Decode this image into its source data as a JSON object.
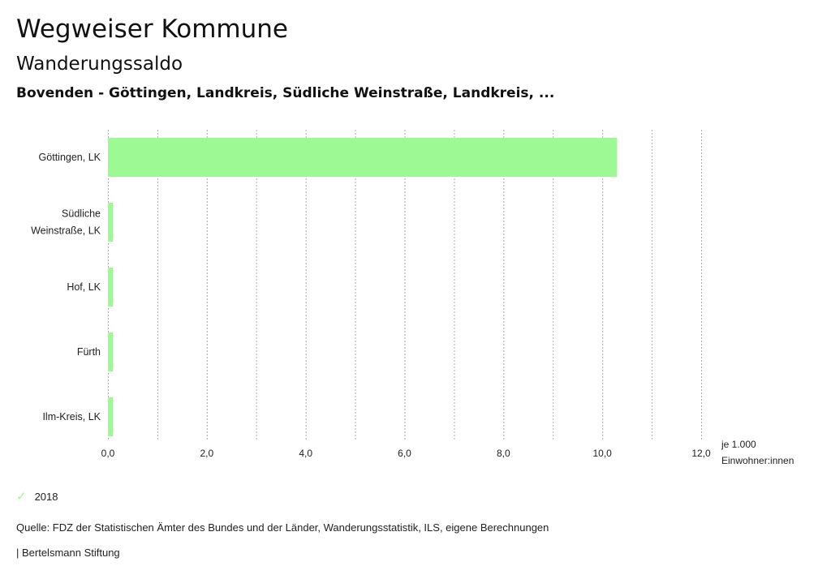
{
  "header": {
    "title": "Wegweiser Kommune",
    "subtitle": "Wanderungssaldo",
    "selection": "Bovenden - Göttingen, Landkreis, Südliche Weinstraße, Landkreis, ..."
  },
  "chart_data": {
    "type": "bar",
    "orientation": "horizontal",
    "categories": [
      [
        "Göttingen, LK"
      ],
      [
        "Südliche",
        "Weinstraße, LK"
      ],
      [
        "Hof, LK"
      ],
      [
        "Fürth"
      ],
      [
        "Ilm-Kreis, LK"
      ]
    ],
    "series": [
      {
        "name": "2018",
        "values": [
          10.3,
          0.1,
          0.1,
          0.1,
          0.1
        ],
        "color": "#9cf994"
      }
    ],
    "xlim": [
      0,
      12
    ],
    "xticks": [
      "0,0",
      "2,0",
      "4,0",
      "6,0",
      "8,0",
      "10,0",
      "12,0"
    ],
    "xlabel": [
      "je 1.000",
      "Einwohner:innen"
    ],
    "grid": true,
    "legend": "bottom-left"
  },
  "legend": {
    "label": "2018",
    "color": "#9cf994"
  },
  "footer": {
    "source": "Quelle: FDZ der Statistischen Ämter des Bundes und der Länder, Wanderungsstatistik, ILS, eigene Berechnungen",
    "brand": "| Bertelsmann Stiftung"
  }
}
